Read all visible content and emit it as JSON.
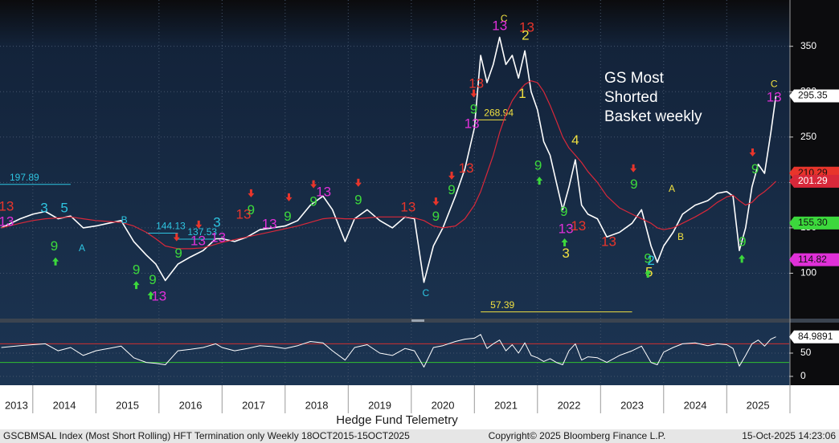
{
  "chart_data": {
    "type": "line",
    "title_lines": [
      "GS Most",
      "Shorted",
      "Basket weekly"
    ],
    "x": [
      2013.5,
      2013.8,
      2014.0,
      2014.2,
      2014.4,
      2014.6,
      2014.8,
      2015.0,
      2015.2,
      2015.4,
      2015.6,
      2015.8,
      2015.95,
      2016.1,
      2016.3,
      2016.5,
      2016.7,
      2016.9,
      2017.0,
      2017.2,
      2017.4,
      2017.6,
      2017.8,
      2018.0,
      2018.2,
      2018.4,
      2018.6,
      2018.75,
      2018.95,
      2019.1,
      2019.3,
      2019.5,
      2019.7,
      2019.9,
      2020.05,
      2020.2,
      2020.35,
      2020.5,
      2020.7,
      2020.85,
      2021.0,
      2021.1,
      2021.2,
      2021.3,
      2021.4,
      2021.5,
      2021.6,
      2021.7,
      2021.8,
      2021.9,
      2022.0,
      2022.1,
      2022.2,
      2022.3,
      2022.4,
      2022.5,
      2022.6,
      2022.7,
      2022.8,
      2022.95,
      2023.1,
      2023.3,
      2023.5,
      2023.65,
      2023.8,
      2023.9,
      2024.0,
      2024.15,
      2024.3,
      2024.5,
      2024.7,
      2024.85,
      2025.0,
      2025.1,
      2025.2,
      2025.3,
      2025.4,
      2025.5,
      2025.6,
      2025.7,
      2025.78
    ],
    "xlim": [
      2013.48,
      2025.99
    ],
    "xticks": [
      2014,
      2015,
      2016,
      2017,
      2018,
      2019,
      2020,
      2021,
      2022,
      2023,
      2024,
      2025
    ],
    "years": [
      "2013",
      "2014",
      "2015",
      "2016",
      "2017",
      "2018",
      "2019",
      "2020",
      "2021",
      "2022",
      "2023",
      "2024",
      "2025"
    ],
    "ylim": [
      50,
      401
    ],
    "yticks": [
      100,
      150,
      200,
      250,
      300,
      350
    ],
    "grid": true,
    "series": [
      {
        "color": "#ffffff",
        "values": [
          150,
          160,
          165,
          168,
          160,
          163,
          150,
          152,
          155,
          158,
          135,
          120,
          110,
          92,
          110,
          118,
          125,
          138,
          138,
          135,
          140,
          148,
          150,
          152,
          158,
          175,
          185,
          170,
          135,
          160,
          170,
          158,
          150,
          162,
          160,
          90,
          130,
          150,
          185,
          215,
          260,
          340,
          310,
          330,
          360,
          330,
          340,
          315,
          345,
          300,
          280,
          245,
          230,
          200,
          170,
          195,
          225,
          175,
          165,
          160,
          140,
          145,
          155,
          170,
          130,
          112,
          130,
          145,
          165,
          175,
          180,
          188,
          190,
          185,
          125,
          150,
          195,
          220,
          210,
          255,
          295.35
        ]
      },
      {
        "color": "#d8283a",
        "values": [
          150,
          155,
          158,
          160,
          161,
          162,
          160,
          158,
          157,
          156,
          152,
          145,
          138,
          130,
          127,
          127,
          128,
          132,
          134,
          137,
          140,
          143,
          146,
          149,
          152,
          156,
          160,
          161,
          160,
          160,
          161,
          162,
          162,
          162,
          161,
          158,
          152,
          150,
          152,
          160,
          175,
          190,
          210,
          230,
          255,
          275,
          290,
          300,
          308,
          312,
          310,
          300,
          285,
          268,
          250,
          238,
          230,
          222,
          212,
          200,
          185,
          172,
          165,
          160,
          155,
          150,
          148,
          150,
          155,
          162,
          170,
          178,
          184,
          186,
          180,
          175,
          178,
          185,
          190,
          196,
          201.29
        ]
      }
    ],
    "rsi": {
      "ylim": [
        -19,
        115.5
      ],
      "yticks": [
        0,
        50
      ],
      "color": "#ffffff",
      "bands": [
        {
          "value": 70,
          "color": "#d03030"
        },
        {
          "value": 30,
          "color": "#30c030"
        }
      ],
      "values": [
        62,
        66,
        68,
        70,
        55,
        62,
        45,
        55,
        60,
        65,
        40,
        30,
        28,
        25,
        55,
        58,
        62,
        70,
        62,
        55,
        60,
        66,
        64,
        60,
        66,
        75,
        72,
        55,
        35,
        62,
        68,
        50,
        45,
        60,
        55,
        20,
        62,
        66,
        75,
        80,
        82,
        90,
        60,
        70,
        78,
        55,
        68,
        50,
        72,
        45,
        40,
        32,
        38,
        30,
        25,
        55,
        70,
        35,
        42,
        40,
        30,
        45,
        55,
        65,
        30,
        25,
        52,
        62,
        70,
        72,
        66,
        70,
        68,
        60,
        22,
        45,
        70,
        78,
        65,
        80,
        84.9891
      ]
    },
    "right_labels": [
      {
        "value": 210.29,
        "color": "#e8352b"
      },
      {
        "value": 155.3,
        "label": "155.30",
        "color": "#3cd83c"
      },
      {
        "value": 114.82,
        "color": "#e030d8"
      }
    ],
    "levels": [
      {
        "value": 197.89,
        "color": "#2ec4e0",
        "from": 2013.48,
        "to": 2014.6
      },
      {
        "value": 144.13,
        "color": "#2ec4e0",
        "from": 2015.8,
        "to": 2016.3
      },
      {
        "value": 137.53,
        "color": "#2ec4e0",
        "from": 2016.3,
        "to": 2016.9
      },
      {
        "value": 268.94,
        "color": "#f0e040",
        "from": 2021.0,
        "to": 2021.5
      },
      {
        "value": 57.39,
        "color": "#f0e040",
        "from": 2021.1,
        "to": 2023.5
      }
    ],
    "annotations": [
      {
        "text": "13",
        "x": 2013.58,
        "y": 173,
        "color": "#e8352b"
      },
      {
        "text": "13",
        "x": 2013.58,
        "y": 156,
        "color": "#e030d8"
      },
      {
        "text": "9",
        "x": 2014.34,
        "y": 129,
        "color": "#3cd83c"
      },
      {
        "text": "3",
        "x": 2014.18,
        "y": 171,
        "color": "#2ec4e0"
      },
      {
        "text": "5",
        "x": 2014.5,
        "y": 171,
        "color": "#2ec4e0"
      },
      {
        "text": "B",
        "x": 2015.45,
        "y": 158,
        "color": "#2ec4e0"
      },
      {
        "text": "A",
        "x": 2014.78,
        "y": 127,
        "color": "#2ec4e0"
      },
      {
        "text": "9",
        "x": 2015.64,
        "y": 103,
        "color": "#3cd83c"
      },
      {
        "text": "9",
        "x": 2015.9,
        "y": 92,
        "color": "#3cd83c"
      },
      {
        "text": "13",
        "x": 2016.0,
        "y": 74,
        "color": "#e030d8"
      },
      {
        "text": "9",
        "x": 2016.31,
        "y": 121,
        "color": "#3cd83c"
      },
      {
        "text": "13",
        "x": 2016.62,
        "y": 135,
        "color": "#e030d8"
      },
      {
        "text": "13",
        "x": 2016.94,
        "y": 138.5,
        "color": "#e030d8"
      },
      {
        "text": "3",
        "x": 2016.92,
        "y": 155,
        "color": "#2ec4e0"
      },
      {
        "text": "13",
        "x": 2017.34,
        "y": 164,
        "color": "#e8352b"
      },
      {
        "text": "9",
        "x": 2017.46,
        "y": 169,
        "color": "#3cd83c"
      },
      {
        "text": "13",
        "x": 2017.75,
        "y": 153.5,
        "color": "#e030d8"
      },
      {
        "text": "9",
        "x": 2018.04,
        "y": 162,
        "color": "#3cd83c"
      },
      {
        "text": "9",
        "x": 2018.45,
        "y": 178,
        "color": "#3cd83c"
      },
      {
        "text": "13",
        "x": 2018.61,
        "y": 189,
        "color": "#e030d8"
      },
      {
        "text": "9",
        "x": 2019.16,
        "y": 180,
        "color": "#3cd83c"
      },
      {
        "text": "13",
        "x": 2019.95,
        "y": 172,
        "color": "#e8352b"
      },
      {
        "text": "9",
        "x": 2020.39,
        "y": 162,
        "color": "#3cd83c"
      },
      {
        "text": "C",
        "x": 2020.23,
        "y": 77.5,
        "color": "#2ec4e0"
      },
      {
        "text": "9",
        "x": 2020.64,
        "y": 191,
        "color": "#3cd83c"
      },
      {
        "text": "13",
        "x": 2020.87,
        "y": 215,
        "color": "#e8352b"
      },
      {
        "text": "13",
        "x": 2020.96,
        "y": 264,
        "color": "#e030d8"
      },
      {
        "text": "9",
        "x": 2020.99,
        "y": 280,
        "color": "#3cd83c"
      },
      {
        "text": "13",
        "x": 2021.03,
        "y": 308,
        "color": "#e8352b"
      },
      {
        "text": "C",
        "x": 2021.47,
        "y": 380,
        "color": "#f0e040"
      },
      {
        "text": "13",
        "x": 2021.4,
        "y": 372,
        "color": "#e030d8"
      },
      {
        "text": "13",
        "x": 2021.83,
        "y": 370,
        "color": "#e8352b"
      },
      {
        "text": "2",
        "x": 2021.81,
        "y": 361,
        "color": "#f0e040"
      },
      {
        "text": "1",
        "x": 2021.76,
        "y": 297,
        "color": "#f0e040"
      },
      {
        "text": "9",
        "x": 2022.01,
        "y": 218,
        "color": "#3cd83c"
      },
      {
        "text": "4",
        "x": 2022.6,
        "y": 246,
        "color": "#f0e040"
      },
      {
        "text": "9",
        "x": 2022.42,
        "y": 167,
        "color": "#3cd83c"
      },
      {
        "text": "13",
        "x": 2022.45,
        "y": 148,
        "color": "#e030d8"
      },
      {
        "text": "13",
        "x": 2022.65,
        "y": 151,
        "color": "#e8352b"
      },
      {
        "text": "3",
        "x": 2022.45,
        "y": 121,
        "color": "#f0e040"
      },
      {
        "text": "13",
        "x": 2023.13,
        "y": 134,
        "color": "#e8352b"
      },
      {
        "text": "9",
        "x": 2023.53,
        "y": 197,
        "color": "#3cd83c"
      },
      {
        "text": "9",
        "x": 2023.75,
        "y": 115.5,
        "color": "#3cd83c"
      },
      {
        "text": "2",
        "x": 2023.8,
        "y": 113,
        "color": "#2ec4e0"
      },
      {
        "text": "5",
        "x": 2023.77,
        "y": 100.5,
        "color": "#f0e040"
      },
      {
        "text": "A",
        "x": 2024.13,
        "y": 192.5,
        "color": "#f0e040"
      },
      {
        "text": "B",
        "x": 2024.27,
        "y": 139.5,
        "color": "#f0e040"
      },
      {
        "text": "9",
        "x": 2025.25,
        "y": 134,
        "color": "#3cd83c"
      },
      {
        "text": "9",
        "x": 2025.45,
        "y": 214,
        "color": "#3cd83c"
      },
      {
        "text": "C",
        "x": 2025.75,
        "y": 308,
        "color": "#f0e040"
      },
      {
        "text": "13",
        "x": 2025.75,
        "y": 293,
        "color": "#e030d8"
      }
    ],
    "arrow_colors": {
      "down": "#e8352b",
      "up": "#3cd83c"
    },
    "arrows": [
      {
        "dir": "down",
        "x": 2016.28,
        "y": 139.6
      },
      {
        "dir": "down",
        "x": 2016.63,
        "y": 153.5
      },
      {
        "dir": "down",
        "x": 2017.46,
        "y": 188
      },
      {
        "dir": "down",
        "x": 2018.06,
        "y": 183.6
      },
      {
        "dir": "down",
        "x": 2018.45,
        "y": 198
      },
      {
        "dir": "down",
        "x": 2019.16,
        "y": 199.6
      },
      {
        "dir": "down",
        "x": 2020.39,
        "y": 179
      },
      {
        "dir": "down",
        "x": 2020.64,
        "y": 207.5
      },
      {
        "dir": "down",
        "x": 2020.99,
        "y": 298
      },
      {
        "dir": "down",
        "x": 2023.52,
        "y": 215.5
      },
      {
        "dir": "down",
        "x": 2025.41,
        "y": 233
      },
      {
        "dir": "up",
        "x": 2014.36,
        "y": 113
      },
      {
        "dir": "up",
        "x": 2015.64,
        "y": 87
      },
      {
        "dir": "up",
        "x": 2015.87,
        "y": 75.6
      },
      {
        "dir": "up",
        "x": 2022.03,
        "y": 202
      },
      {
        "dir": "up",
        "x": 2022.43,
        "y": 134
      },
      {
        "dir": "up",
        "x": 2023.75,
        "y": 99.5
      },
      {
        "dir": "up",
        "x": 2025.24,
        "y": 116
      }
    ],
    "caption": "Hedge Fund Telemetry",
    "footer": {
      "left": "GSCBMSAL Index (Most Short Rolling) HFT Termination only Weekly 18OCT2015-15OCT2025",
      "center": "Copyright© 2025 Bloomberg Finance L.P.",
      "right": "15-Oct-2025 14:23:06"
    }
  }
}
